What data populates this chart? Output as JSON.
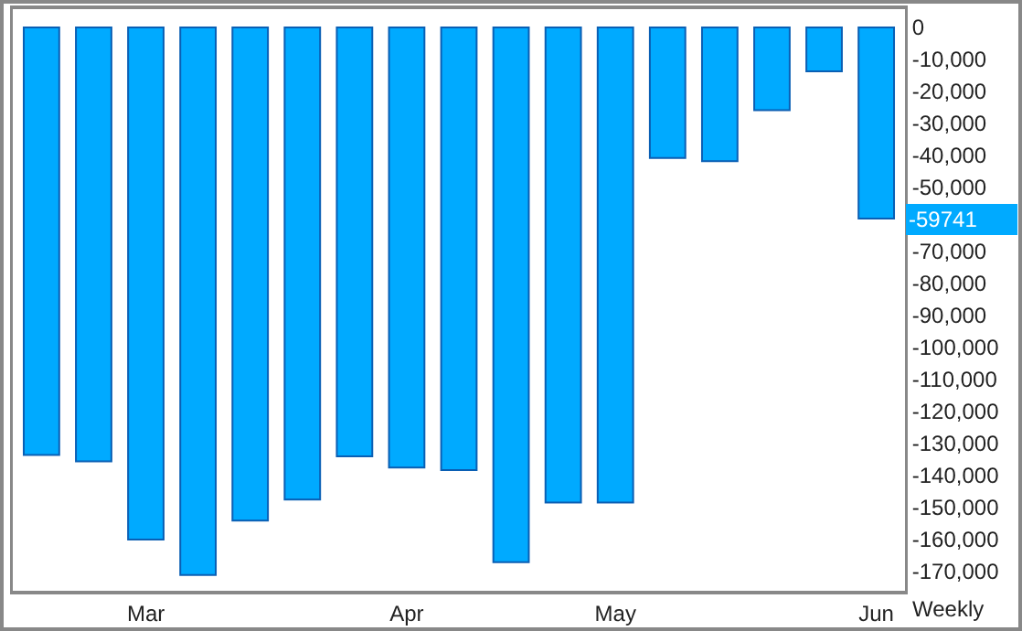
{
  "chart_data": {
    "type": "bar",
    "categories": [
      null,
      null,
      "Mar",
      null,
      null,
      null,
      null,
      "Apr",
      null,
      null,
      null,
      "May",
      null,
      null,
      null,
      null,
      "Jun"
    ],
    "values": [
      -133600,
      -135600,
      -160000,
      -171100,
      -154100,
      -147500,
      -134000,
      -137500,
      -138300,
      -167100,
      -148400,
      -148400,
      -40800,
      -41800,
      -25900,
      -13700,
      -59741
    ],
    "color": "#00aaff",
    "ylim": [
      -176000,
      5700
    ],
    "yticks": [
      0,
      {
        "value": -10000,
        "label": "-10,000"
      },
      {
        "value": -20000,
        "label": "-20,000"
      },
      {
        "value": -30000,
        "label": "-30,000"
      },
      {
        "value": -40000,
        "label": "-40,000"
      },
      {
        "value": -50000,
        "label": "-50,000"
      },
      {
        "value": -70000,
        "label": "-70,000"
      },
      {
        "value": -80000,
        "label": "-80,000"
      },
      {
        "value": -90000,
        "label": "-90,000"
      },
      {
        "value": -100000,
        "label": "-100,000"
      },
      {
        "value": -110000,
        "label": "-110,000"
      },
      {
        "value": -120000,
        "label": "-120,000"
      },
      {
        "value": -130000,
        "label": "-130,000"
      },
      {
        "value": -140000,
        "label": "-140,000"
      },
      {
        "value": -150000,
        "label": "-150,000"
      },
      {
        "value": -160000,
        "label": "-160,000"
      },
      {
        "value": -170000,
        "label": "-170,000"
      }
    ],
    "annotations": [
      "-59741",
      "Weekly"
    ],
    "grid": false
  }
}
